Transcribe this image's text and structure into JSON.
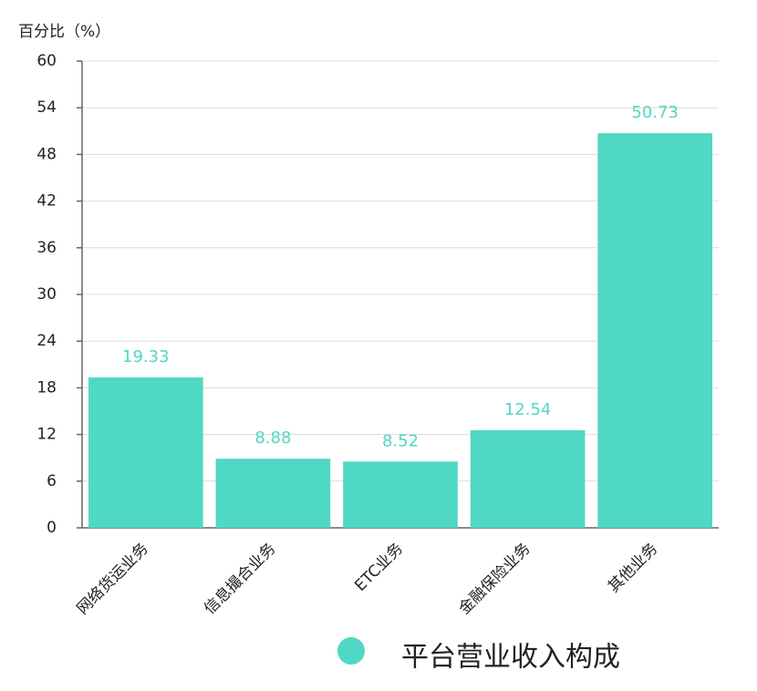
{
  "chart_data": {
    "type": "bar",
    "y_label": "百分比（%）",
    "legend": "平台营业收入构成",
    "categories": [
      "网络货运业务",
      "信息撮合业务",
      "ETC业务",
      "金融保险业务",
      "其他业务"
    ],
    "values": [
      19.33,
      8.88,
      8.52,
      12.54,
      50.73
    ],
    "color": "#4fd8c4",
    "ylim": [
      0,
      60
    ],
    "yticks": [
      0,
      6,
      12,
      18,
      24,
      30,
      36,
      42,
      48,
      54,
      60
    ],
    "grid": true
  }
}
